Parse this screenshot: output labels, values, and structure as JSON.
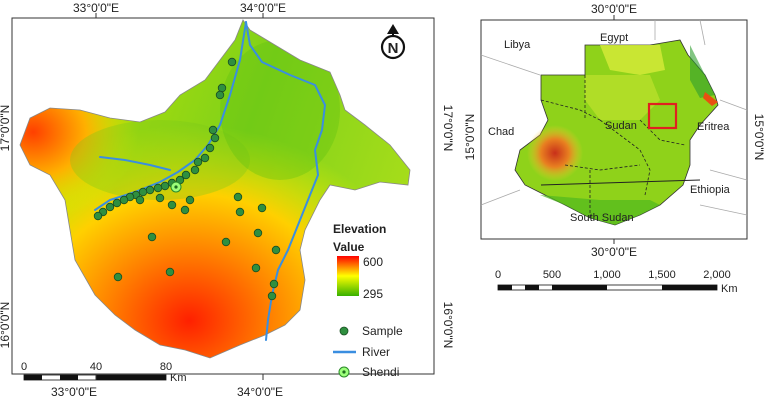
{
  "main_map": {
    "top_lon_labels": [
      "33°0'0\"E",
      "34°0'0\"E"
    ],
    "bottom_lon_labels": [
      "33°0'0\"E",
      "34°0'0\"E"
    ],
    "left_lat_labels": [
      "17°0'0\"N",
      "16°0'0\"N"
    ],
    "right_lat_labels": [
      "17°0'0\"N",
      "16°0'0\"N"
    ],
    "north_arrow": "N",
    "scale": {
      "ticks": [
        "0",
        "40",
        "80"
      ],
      "unit": "Km"
    },
    "elevation_legend": {
      "title": "Elevation",
      "subtitle": "Value",
      "max": "600",
      "min": "295",
      "high_color": "#ff0000",
      "mid_color": "#ffff00",
      "low_color": "#38b000"
    },
    "point_legend": [
      {
        "label": "Sample",
        "symbol": "green-dot",
        "color": "#2f8f3f"
      },
      {
        "label": "River",
        "symbol": "blue-line",
        "color": "#3a8ee0"
      },
      {
        "label": "Shendi",
        "symbol": "shendi-marker",
        "color": "#6ee06e"
      }
    ]
  },
  "inset_map": {
    "top_lon_label": "30°0'0\"E",
    "bottom_lon_label": "30°0'0\"E",
    "left_lat_label": "15°0'0\"N",
    "right_lat_label": "15°0'0\"N",
    "countries": [
      "Libya",
      "Egypt",
      "Chad",
      "Sudan",
      "Eritrea",
      "Ethiopia",
      "South Sudan"
    ],
    "study_area_box_color": "#e02020"
  },
  "inset_scale": {
    "ticks": [
      "0",
      "500",
      "1,000",
      "1,500",
      "2,000"
    ],
    "unit": "Km"
  }
}
